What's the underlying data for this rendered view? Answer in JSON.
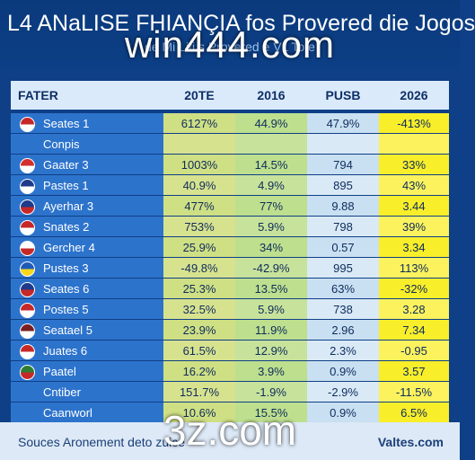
{
  "header": {
    "title": "L4 ANaLISE FHIANÇIA fos Provered die Jogos",
    "subtitle": "de Mi Liti s Provered e VL Tote"
  },
  "watermarks": {
    "top": "win444.com",
    "bottom": "3z.com"
  },
  "table": {
    "columns": [
      "FATER",
      "20TE",
      "2016",
      "PUSB",
      "2026"
    ],
    "rows": [
      {
        "label": "Seates 1",
        "flag": [
          "#c62828",
          "#ffffff"
        ],
        "values": [
          "6127%",
          "44.9%",
          "47.9%",
          "-413%"
        ]
      },
      {
        "label": "Conpis",
        "flag": null,
        "values": [
          "",
          "",
          "",
          ""
        ]
      },
      {
        "label": "Gaater 3",
        "flag": [
          "#d32f2f",
          "#ffffff"
        ],
        "values": [
          "1003%",
          "14.5%",
          "794",
          "33%"
        ]
      },
      {
        "label": "Pastes 1",
        "flag": [
          "#1e3a8a",
          "#ffffff"
        ],
        "values": [
          "40.9%",
          "4.9%",
          "895",
          "43%"
        ]
      },
      {
        "label": "Ayerhar 3",
        "flag": [
          "#1e3a8a",
          "#c62828"
        ],
        "values": [
          "477%",
          "77%",
          "9.88",
          "3.44"
        ]
      },
      {
        "label": "Snates 2",
        "flag": [
          "#c62828",
          "#ffffff"
        ],
        "values": [
          "753%",
          "5.9%",
          "798",
          "39%"
        ]
      },
      {
        "label": "Gercher 4",
        "flag": [
          "#ffffff",
          "#c62828"
        ],
        "values": [
          "25.9%",
          "34%",
          "0.57",
          "3.34"
        ]
      },
      {
        "label": "Pustes 3",
        "flag": [
          "#1e5bb8",
          "#f9d71c"
        ],
        "values": [
          "-49.8%",
          "-42.9%",
          "995",
          "113%"
        ]
      },
      {
        "label": "Seates 6",
        "flag": [
          "#1e3a8a",
          "#c62828"
        ],
        "values": [
          "25.3%",
          "13.5%",
          "63%",
          "-32%"
        ]
      },
      {
        "label": "Postes 5",
        "flag": [
          "#c62828",
          "#ffffff"
        ],
        "values": [
          "32.5%",
          "5.9%",
          "738",
          "3.28"
        ]
      },
      {
        "label": "Seatael 5",
        "flag": [
          "#7a1f1f",
          "#ffffff"
        ],
        "values": [
          "23.9%",
          "11.9%",
          "2.96",
          "7.34"
        ]
      },
      {
        "label": "Juates 6",
        "flag": [
          "#c62828",
          "#ffffff"
        ],
        "values": [
          "61.5%",
          "12.9%",
          "2.3%",
          "-0.95"
        ]
      },
      {
        "label": "Paatel",
        "flag": [
          "#2e7d32",
          "#c62828"
        ],
        "values": [
          "16.2%",
          "3.9%",
          "0.9%",
          "3.57"
        ]
      },
      {
        "label": "Cntiber",
        "flag": null,
        "values": [
          "151.7%",
          "-1.9%",
          "-2.9%",
          "-11.5%"
        ]
      },
      {
        "label": "Caanworl",
        "flag": null,
        "values": [
          "10.6%",
          "15.5%",
          "0.9%",
          "6.5%"
        ]
      }
    ]
  },
  "footer": {
    "source": "Souces Aronement deto  zuice",
    "right": "Valtes.com"
  }
}
